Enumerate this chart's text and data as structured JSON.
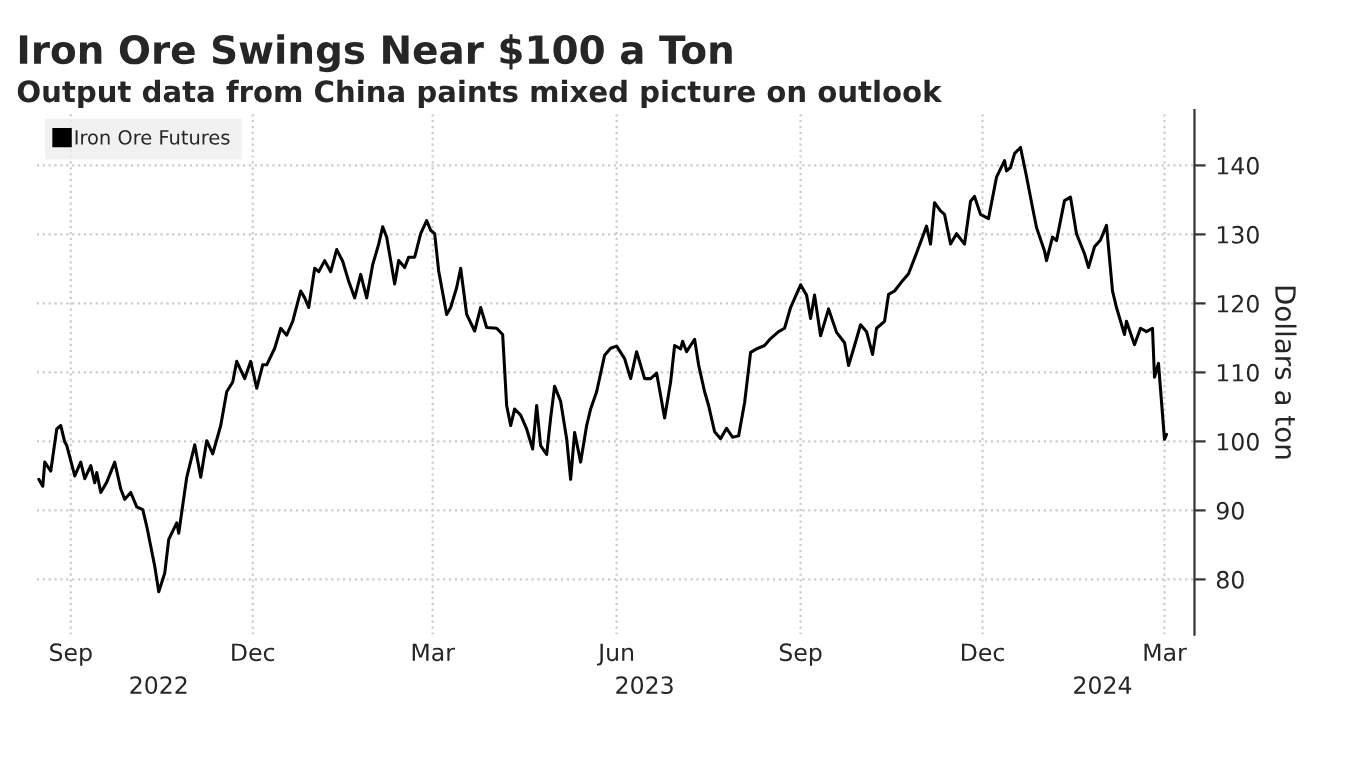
{
  "chart_data": {
    "type": "line",
    "title": "Iron Ore Swings Near $100 a Ton",
    "subtitle": "Output data from China paints mixed picture on outlook",
    "ylabel": "Dollars a ton",
    "xlim": [
      "2022-08-15",
      "2024-03-16"
    ],
    "ylim": [
      72,
      148
    ],
    "xticks": [
      {
        "value": "2022-09-01",
        "label": "Sep"
      },
      {
        "value": "2022-12-01",
        "label": "Dec"
      },
      {
        "value": "2023-03-01",
        "label": "Mar"
      },
      {
        "value": "2023-06-01",
        "label": "Jun"
      },
      {
        "value": "2023-09-01",
        "label": "Sep"
      },
      {
        "value": "2023-12-01",
        "label": "Dec"
      },
      {
        "value": "2024-03-01",
        "label": "Mar"
      }
    ],
    "x2lim": [
      "2022-08-15",
      "2024-03-16"
    ],
    "x2ticks": [
      {
        "value": "2022-10-15",
        "label": "2022"
      },
      {
        "value": "2023-06-15",
        "label": "2023"
      },
      {
        "value": "2024-01-30",
        "label": "2024"
      }
    ],
    "yticks": [
      80,
      90,
      100,
      110,
      120,
      130,
      140
    ],
    "grid": true,
    "legend": "top left",
    "marker": "none",
    "line_style": "solid",
    "series": [
      {
        "name": "Iron Ore Futures",
        "color": "#000000",
        "x": [
          "2022-08-16",
          "2022-08-18",
          "2022-08-19",
          "2022-08-22",
          "2022-08-25",
          "2022-08-27",
          "2022-08-29",
          "2022-08-30",
          "2022-09-03",
          "2022-09-06",
          "2022-09-08",
          "2022-09-11",
          "2022-09-13",
          "2022-09-14",
          "2022-09-16",
          "2022-09-19",
          "2022-09-23",
          "2022-09-26",
          "2022-09-28",
          "2022-10-01",
          "2022-10-04",
          "2022-10-07",
          "2022-10-09",
          "2022-10-13",
          "2022-10-15",
          "2022-10-18",
          "2022-10-20",
          "2022-10-24",
          "2022-10-25",
          "2022-10-29",
          "2022-11-02",
          "2022-11-05",
          "2022-11-08",
          "2022-11-11",
          "2022-11-15",
          "2022-11-18",
          "2022-11-21",
          "2022-11-23",
          "2022-11-27",
          "2022-11-30",
          "2022-12-03",
          "2022-12-06",
          "2022-12-08",
          "2022-12-12",
          "2022-12-15",
          "2022-12-18",
          "2022-12-21",
          "2022-12-25",
          "2022-12-27",
          "2022-12-29",
          "2023-01-01",
          "2023-01-03",
          "2023-01-06",
          "2023-01-09",
          "2023-01-12",
          "2023-01-15",
          "2023-01-18",
          "2023-01-21",
          "2023-01-24",
          "2023-01-27",
          "2023-01-30",
          "2023-02-02",
          "2023-02-04",
          "2023-02-06",
          "2023-02-10",
          "2023-02-12",
          "2023-02-15",
          "2023-02-17",
          "2023-02-20",
          "2023-02-23",
          "2023-02-26",
          "2023-02-28",
          "2023-03-02",
          "2023-03-04",
          "2023-03-08",
          "2023-03-10",
          "2023-03-13",
          "2023-03-15",
          "2023-03-18",
          "2023-03-22",
          "2023-03-25",
          "2023-03-28",
          "2023-04-02",
          "2023-04-05",
          "2023-04-07",
          "2023-04-09",
          "2023-04-11",
          "2023-04-14",
          "2023-04-17",
          "2023-04-20",
          "2023-04-22",
          "2023-04-24",
          "2023-04-27",
          "2023-04-29",
          "2023-05-01",
          "2023-05-04",
          "2023-05-07",
          "2023-05-09",
          "2023-05-11",
          "2023-05-14",
          "2023-05-17",
          "2023-05-19",
          "2023-05-22",
          "2023-05-26",
          "2023-05-29",
          "2023-06-01",
          "2023-06-05",
          "2023-06-08",
          "2023-06-11",
          "2023-06-15",
          "2023-06-18",
          "2023-06-21",
          "2023-06-25",
          "2023-06-28",
          "2023-06-30",
          "2023-07-03",
          "2023-07-04",
          "2023-07-06",
          "2023-07-10",
          "2023-07-12",
          "2023-07-15",
          "2023-07-17",
          "2023-07-20",
          "2023-07-23",
          "2023-07-26",
          "2023-07-29",
          "2023-08-01",
          "2023-08-04",
          "2023-08-07",
          "2023-08-10",
          "2023-08-14",
          "2023-08-17",
          "2023-08-21",
          "2023-08-24",
          "2023-08-27",
          "2023-09-01",
          "2023-09-04",
          "2023-09-06",
          "2023-09-08",
          "2023-09-11",
          "2023-09-15",
          "2023-09-19",
          "2023-09-23",
          "2023-09-25",
          "2023-09-28",
          "2023-10-01",
          "2023-10-04",
          "2023-10-07",
          "2023-10-09",
          "2023-10-13",
          "2023-10-15",
          "2023-10-18",
          "2023-10-22",
          "2023-10-25",
          "2023-10-29",
          "2023-11-03",
          "2023-11-05",
          "2023-11-07",
          "2023-11-10",
          "2023-11-12",
          "2023-11-15",
          "2023-11-18",
          "2023-11-22",
          "2023-11-25",
          "2023-11-27",
          "2023-11-30",
          "2023-12-04",
          "2023-12-08",
          "2023-12-12",
          "2023-12-13",
          "2023-12-15",
          "2023-12-17",
          "2023-12-20",
          "2023-12-23",
          "2023-12-26",
          "2023-12-28",
          "2024-01-01",
          "2024-01-02",
          "2024-01-05",
          "2024-01-07",
          "2024-01-11",
          "2024-01-14",
          "2024-01-17",
          "2024-01-21",
          "2024-01-23",
          "2024-01-26",
          "2024-01-29",
          "2024-02-01",
          "2024-02-04",
          "2024-02-06",
          "2024-02-10",
          "2024-02-11",
          "2024-02-15",
          "2024-02-18",
          "2024-02-21",
          "2024-02-24",
          "2024-02-25",
          "2024-02-27",
          "2024-03-01",
          "2024-03-02"
        ],
        "values": [
          94.5,
          93.5,
          97.0,
          95.7,
          101.8,
          102.3,
          99.9,
          99.4,
          95.0,
          97.0,
          94.6,
          96.5,
          94.0,
          95.5,
          92.6,
          94.1,
          97.0,
          93.1,
          91.6,
          92.6,
          90.5,
          90.1,
          87.7,
          81.9,
          78.2,
          80.9,
          85.8,
          88.2,
          86.7,
          94.8,
          99.5,
          94.8,
          100.1,
          98.2,
          102.3,
          107.2,
          108.6,
          111.6,
          109.1,
          111.6,
          107.7,
          111.1,
          111.1,
          113.5,
          116.4,
          115.4,
          117.4,
          121.8,
          120.8,
          119.4,
          125.1,
          124.6,
          126.2,
          124.6,
          127.8,
          126.1,
          123.2,
          120.8,
          124.2,
          120.8,
          125.6,
          128.6,
          131.1,
          129.6,
          122.8,
          126.2,
          125.2,
          126.7,
          126.7,
          130.1,
          132.0,
          130.6,
          130.1,
          124.7,
          118.4,
          119.4,
          122.3,
          125.1,
          118.4,
          116.0,
          119.4,
          116.5,
          116.4,
          115.5,
          105.2,
          102.3,
          104.7,
          103.8,
          101.8,
          98.9,
          105.2,
          99.4,
          98.1,
          103.4,
          108.0,
          105.8,
          100.4,
          94.5,
          101.3,
          97.0,
          102.3,
          104.7,
          107.2,
          112.5,
          113.5,
          113.8,
          112.0,
          109.1,
          113.0,
          109.1,
          109.1,
          109.9,
          103.4,
          108.6,
          113.9,
          113.4,
          114.5,
          113.0,
          114.8,
          111.1,
          107.2,
          105.2,
          101.4,
          100.4,
          101.9,
          100.6,
          100.8,
          105.6,
          112.9,
          113.4,
          113.9,
          114.9,
          115.9,
          116.4,
          119.4,
          122.7,
          121.2,
          117.8,
          121.2,
          115.3,
          119.2,
          115.8,
          114.3,
          111.0,
          113.9,
          116.9,
          115.9,
          112.6,
          116.4,
          117.4,
          121.3,
          121.8,
          123.3,
          124.3,
          127.3,
          131.2,
          128.6,
          134.6,
          133.4,
          132.9,
          128.6,
          130.1,
          128.6,
          134.8,
          135.5,
          132.9,
          132.3,
          138.3,
          140.7,
          139.2,
          139.7,
          141.7,
          142.6,
          138.4,
          133.9,
          131.0,
          127.6,
          126.2,
          129.6,
          129.1,
          134.9,
          135.4,
          130.1,
          127.2,
          125.2,
          128.2,
          129.2,
          131.3,
          121.8,
          119.4,
          115.5,
          117.4,
          114.0,
          116.4,
          115.9,
          116.4,
          109.3,
          111.3,
          100.3,
          101.0
        ]
      }
    ]
  }
}
